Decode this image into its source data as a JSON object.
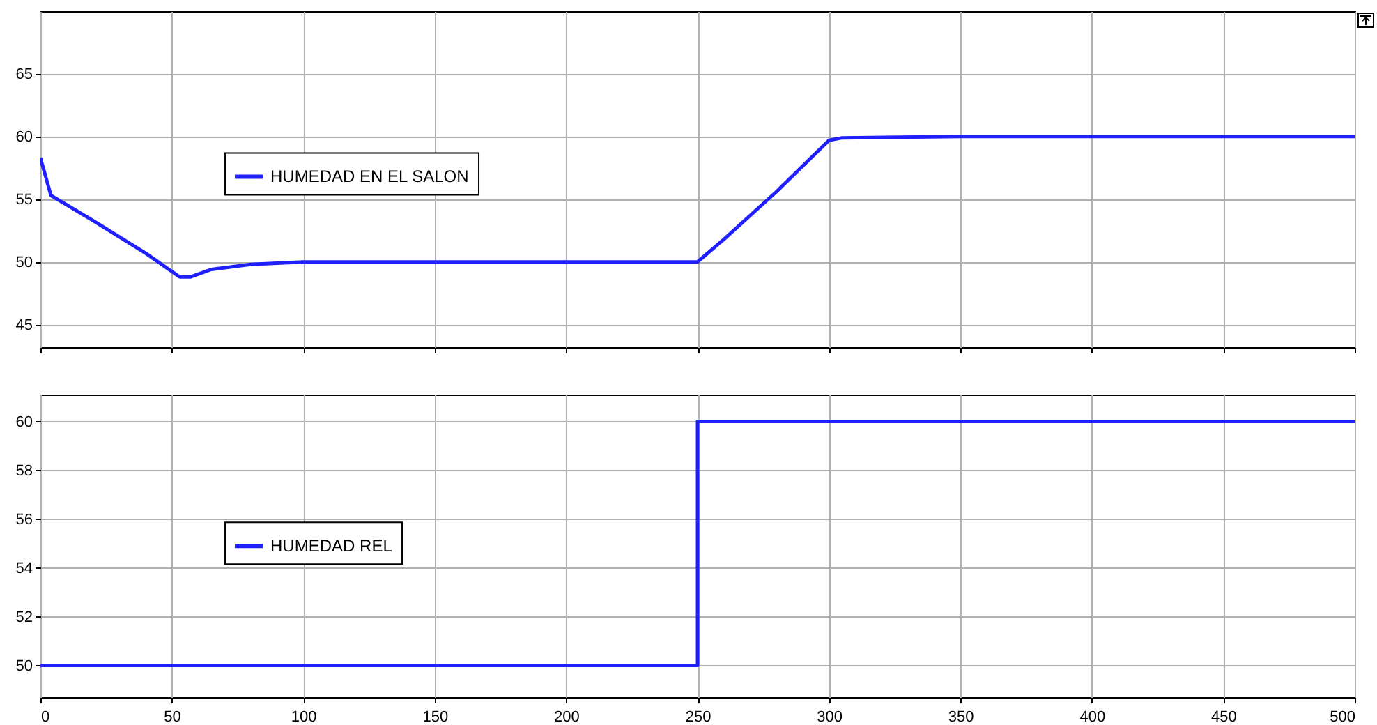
{
  "chart_data": [
    {
      "type": "line",
      "x": [
        0,
        4,
        20,
        40,
        53,
        57,
        65,
        80,
        100,
        150,
        250,
        260,
        280,
        300,
        305,
        350,
        500
      ],
      "series": [
        {
          "name": "HUMEDAD EN EL SALON",
          "color": "#2020ff",
          "values": [
            58.3,
            55.3,
            53.3,
            50.7,
            48.8,
            48.8,
            49.4,
            49.8,
            50,
            50,
            50,
            51.8,
            55.6,
            59.7,
            59.9,
            60,
            60
          ]
        }
      ],
      "xlim": [
        0,
        500
      ],
      "xticks": [
        0,
        50,
        100,
        150,
        200,
        250,
        300,
        350,
        400,
        450,
        500
      ],
      "ylim": [
        43.2,
        70
      ],
      "yticks": [
        45,
        50,
        55,
        60,
        65
      ],
      "tick_labels": "y",
      "grid": true,
      "legend": "left"
    },
    {
      "type": "step",
      "x": [
        0,
        250,
        500
      ],
      "series": [
        {
          "name": "HUMEDAD REL",
          "color": "#2020ff",
          "values": [
            50,
            60,
            60
          ]
        }
      ],
      "xlim": [
        0,
        500
      ],
      "xticks": [
        0,
        50,
        100,
        150,
        200,
        250,
        300,
        350,
        400,
        450,
        500
      ],
      "ylim": [
        48.7,
        61.1
      ],
      "yticks": [
        50,
        52,
        54,
        56,
        58,
        60
      ],
      "grid": true,
      "legend": "left"
    }
  ]
}
